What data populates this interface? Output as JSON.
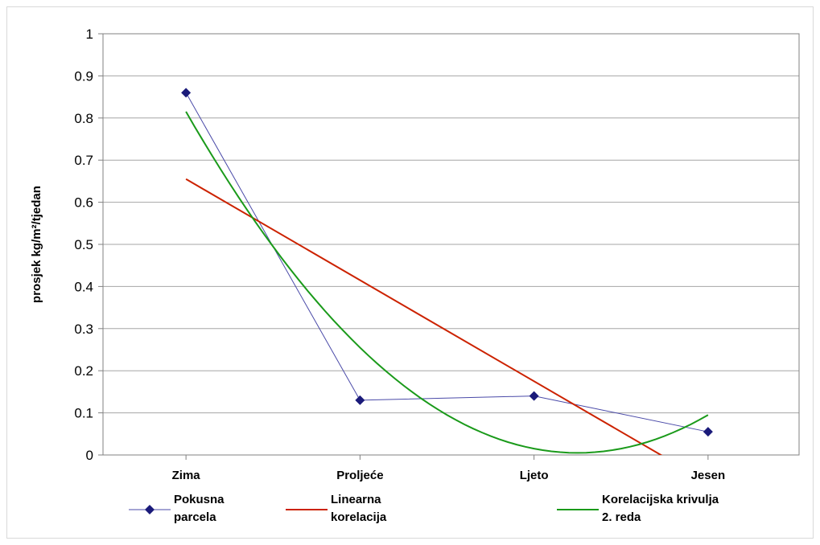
{
  "chart_data": {
    "type": "line",
    "title": "",
    "xlabel": "",
    "ylabel": "prosjek kg/m²/tjedan",
    "ylim": [
      0,
      1
    ],
    "yticks": [
      "0",
      "0.1",
      "0.2",
      "0.3",
      "0.4",
      "0.5",
      "0.6",
      "0.7",
      "0.8",
      "0.9",
      "1"
    ],
    "grid": true,
    "legend_position": "bottom",
    "categories": [
      "Zima",
      "Proljeće",
      "Ljeto",
      "Jesen"
    ],
    "series": [
      {
        "name": "Pokusna parcela",
        "legend_lines": [
          "Pokusna",
          "parcela"
        ],
        "color": "#1a1a7a",
        "marker": "diamond",
        "values": [
          0.86,
          0.13,
          0.14,
          0.055
        ]
      },
      {
        "name": "Linearna korelacija",
        "legend_lines": [
          "Linearna",
          "korelacija"
        ],
        "color": "#cc2200",
        "trend": "linear",
        "values": [
          0.655,
          0.415,
          0.175,
          -0.065
        ]
      },
      {
        "name": "Korelacijska krivulja 2. reda",
        "legend_lines": [
          "Korelacijska krivulja",
          "2. reda"
        ],
        "color": "#1a9a1a",
        "trend": "polynomial-2",
        "values": [
          0.815,
          0.255,
          0.015,
          0.095
        ]
      }
    ]
  }
}
